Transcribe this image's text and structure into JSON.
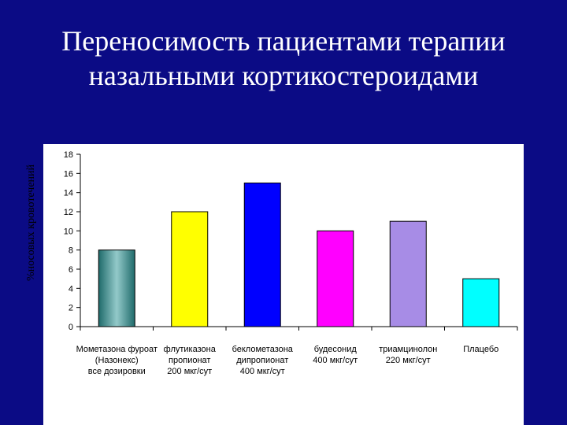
{
  "title": {
    "line1": "Переносимость пациентами терапии",
    "line2": "назальными кортикостероидами"
  },
  "chart_data": {
    "type": "bar",
    "ylabel": "%носовых кровотечений",
    "xlabel": "",
    "ylim": [
      0,
      18
    ],
    "yticks": [
      0,
      2,
      4,
      6,
      8,
      10,
      12,
      14,
      16,
      18
    ],
    "grid": false,
    "categories": [
      "Мометазона фуроат\n(Назонекс)\nвсе дозировки",
      "флутиказона\nпропионат\n200 мкг/сут",
      "беклометазона\nдипропионат\n400 мкг/сут",
      "будесонид\n400 мкг/сут",
      "триамцинолон\n220 мкг/сут",
      "Плацебо"
    ],
    "values": [
      8,
      12,
      15,
      10,
      11,
      5
    ],
    "colors": [
      "#5a9898",
      "#ffff00",
      "#0000ff",
      "#ff00ff",
      "#a78ce6",
      "#00ffff"
    ]
  }
}
